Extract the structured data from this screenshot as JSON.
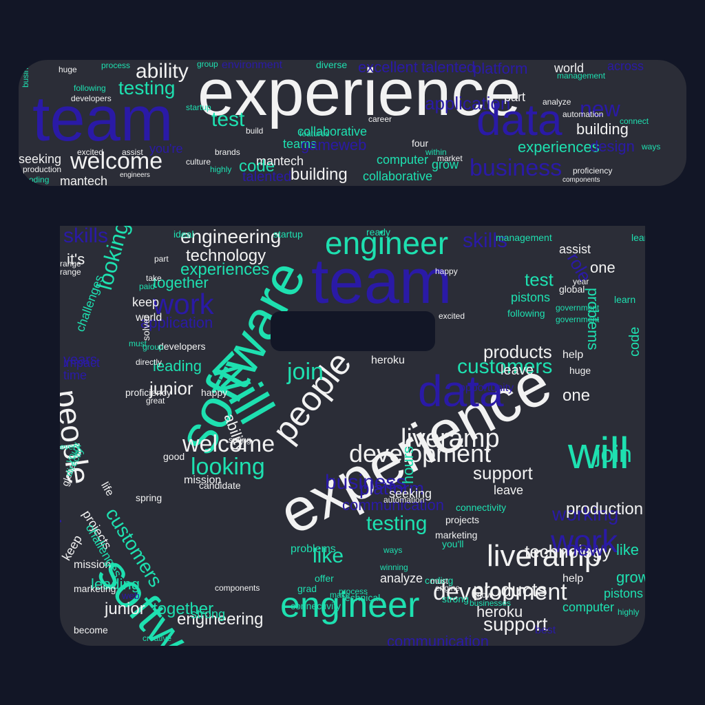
{
  "palette": {
    "background": "#121626",
    "shape": "#2b2d37",
    "white": "#f2f2f2",
    "teal": "#1ee0b0",
    "indigo": "#2a1aa6"
  },
  "lid_words": [
    {
      "t": "experience",
      "c": "white"
    },
    {
      "t": "team",
      "c": "indigo"
    },
    {
      "t": "data",
      "c": "indigo"
    },
    {
      "t": "ability",
      "c": "white"
    },
    {
      "t": "welcome",
      "c": "white"
    },
    {
      "t": "testing",
      "c": "teal"
    },
    {
      "t": "test",
      "c": "teal"
    },
    {
      "t": "business",
      "c": "indigo"
    },
    {
      "t": "new",
      "c": "indigo"
    },
    {
      "t": "building",
      "c": "white"
    },
    {
      "t": "experiences",
      "c": "teal"
    },
    {
      "t": "code",
      "c": "teal"
    },
    {
      "t": "building",
      "c": "white"
    },
    {
      "t": "mantech",
      "c": "white"
    },
    {
      "t": "mantech",
      "c": "white"
    },
    {
      "t": "collaborative",
      "c": "teal"
    },
    {
      "t": "collaborative",
      "c": "teal"
    },
    {
      "t": "application",
      "c": "indigo"
    },
    {
      "t": "platform",
      "c": "indigo"
    },
    {
      "t": "teams",
      "c": "teal"
    },
    {
      "t": "seeking",
      "c": "white"
    },
    {
      "t": "computer",
      "c": "teal"
    },
    {
      "t": "grow",
      "c": "teal"
    },
    {
      "t": "design",
      "c": "indigo"
    },
    {
      "t": "part",
      "c": "white"
    },
    {
      "t": "world",
      "c": "white"
    },
    {
      "t": "automation",
      "c": "white"
    },
    {
      "t": "proficiency",
      "c": "white"
    },
    {
      "t": "components",
      "c": "white"
    },
    {
      "t": "ways",
      "c": "teal"
    },
    {
      "t": "huge",
      "c": "white"
    },
    {
      "t": "excited",
      "c": "white"
    },
    {
      "t": "assist",
      "c": "white"
    },
    {
      "t": "culture",
      "c": "white"
    },
    {
      "t": "brands",
      "c": "white"
    },
    {
      "t": "highly",
      "c": "teal"
    },
    {
      "t": "features",
      "c": "teal"
    },
    {
      "t": "four",
      "c": "white"
    },
    {
      "t": "within",
      "c": "teal"
    },
    {
      "t": "market",
      "c": "white"
    },
    {
      "t": "career",
      "c": "white"
    },
    {
      "t": "excellent",
      "c": "indigo"
    },
    {
      "t": "talented",
      "c": "indigo"
    },
    {
      "t": "diverse",
      "c": "teal"
    },
    {
      "t": "environment",
      "c": "indigo"
    },
    {
      "t": "group",
      "c": "teal"
    },
    {
      "t": "process",
      "c": "teal"
    },
    {
      "t": "following",
      "c": "teal"
    },
    {
      "t": "developers",
      "c": "white"
    },
    {
      "t": "startup",
      "c": "teal"
    },
    {
      "t": "build",
      "c": "white"
    },
    {
      "t": "engineers",
      "c": "white"
    },
    {
      "t": "production",
      "c": "white"
    },
    {
      "t": "coding",
      "c": "teal"
    },
    {
      "t": "management",
      "c": "teal"
    },
    {
      "t": "across",
      "c": "indigo"
    },
    {
      "t": "connect",
      "c": "teal"
    },
    {
      "t": "analyze",
      "c": "white"
    },
    {
      "t": "you're",
      "c": "indigo"
    },
    {
      "t": "gameweb",
      "c": "indigo"
    },
    {
      "t": "talented",
      "c": "indigo"
    },
    {
      "t": "businesses",
      "c": "teal"
    }
  ],
  "box_words": [
    {
      "t": "team",
      "c": "indigo"
    },
    {
      "t": "experience",
      "c": "white"
    },
    {
      "t": "software",
      "c": "teal"
    },
    {
      "t": "software",
      "c": "teal"
    },
    {
      "t": "will",
      "c": "teal"
    },
    {
      "t": "will",
      "c": "teal"
    },
    {
      "t": "people",
      "c": "white"
    },
    {
      "t": "people",
      "c": "white"
    },
    {
      "t": "engineer",
      "c": "teal"
    },
    {
      "t": "engineer",
      "c": "teal"
    },
    {
      "t": "data",
      "c": "indigo"
    },
    {
      "t": "liveramp",
      "c": "white"
    },
    {
      "t": "liveramp",
      "c": "white"
    },
    {
      "t": "development",
      "c": "white"
    },
    {
      "t": "development",
      "c": "white"
    },
    {
      "t": "work",
      "c": "indigo"
    },
    {
      "t": "work",
      "c": "indigo"
    },
    {
      "t": "welcome",
      "c": "white"
    },
    {
      "t": "looking",
      "c": "teal"
    },
    {
      "t": "looking",
      "c": "teal"
    },
    {
      "t": "join",
      "c": "teal"
    },
    {
      "t": "join",
      "c": "teal"
    },
    {
      "t": "customers",
      "c": "teal"
    },
    {
      "t": "customers",
      "c": "teal"
    },
    {
      "t": "skills",
      "c": "indigo"
    },
    {
      "t": "skills",
      "c": "indigo"
    },
    {
      "t": "engineering",
      "c": "white"
    },
    {
      "t": "engineering",
      "c": "white"
    },
    {
      "t": "technology",
      "c": "white"
    },
    {
      "t": "technology",
      "c": "white"
    },
    {
      "t": "experiences",
      "c": "teal"
    },
    {
      "t": "together",
      "c": "teal"
    },
    {
      "t": "together",
      "c": "teal"
    },
    {
      "t": "application",
      "c": "indigo"
    },
    {
      "t": "products",
      "c": "white"
    },
    {
      "t": "products",
      "c": "white"
    },
    {
      "t": "testing",
      "c": "teal"
    },
    {
      "t": "test",
      "c": "teal"
    },
    {
      "t": "support",
      "c": "white"
    },
    {
      "t": "support",
      "c": "white"
    },
    {
      "t": "business",
      "c": "indigo"
    },
    {
      "t": "platform",
      "c": "indigo"
    },
    {
      "t": "communication",
      "c": "indigo"
    },
    {
      "t": "communication",
      "c": "indigo"
    },
    {
      "t": "working",
      "c": "indigo"
    },
    {
      "t": "leading",
      "c": "teal"
    },
    {
      "t": "leading",
      "c": "teal"
    },
    {
      "t": "junior",
      "c": "white"
    },
    {
      "t": "junior",
      "c": "white"
    },
    {
      "t": "one",
      "c": "white"
    },
    {
      "t": "one",
      "c": "white"
    },
    {
      "t": "like",
      "c": "teal"
    },
    {
      "t": "like",
      "c": "teal"
    },
    {
      "t": "role",
      "c": "indigo"
    },
    {
      "t": "role",
      "c": "indigo"
    },
    {
      "t": "code",
      "c": "teal"
    },
    {
      "t": "grow",
      "c": "teal"
    },
    {
      "t": "pistons",
      "c": "teal"
    },
    {
      "t": "pistons",
      "c": "teal"
    },
    {
      "t": "heroku",
      "c": "white"
    },
    {
      "t": "heroku",
      "c": "white"
    },
    {
      "t": "ability",
      "c": "white"
    },
    {
      "t": "mission",
      "c": "white"
    },
    {
      "t": "mission",
      "c": "white"
    },
    {
      "t": "projects",
      "c": "white"
    },
    {
      "t": "projects",
      "c": "white"
    },
    {
      "t": "strong",
      "c": "teal"
    },
    {
      "t": "strong",
      "c": "teal"
    },
    {
      "t": "problems",
      "c": "teal"
    },
    {
      "t": "problems",
      "c": "teal"
    },
    {
      "t": "challenges",
      "c": "teal"
    },
    {
      "t": "challenges",
      "c": "teal"
    },
    {
      "t": "computer",
      "c": "teal"
    },
    {
      "t": "hours",
      "c": "teal"
    },
    {
      "t": "connectivity",
      "c": "teal"
    },
    {
      "t": "connectivity",
      "c": "teal"
    },
    {
      "t": "keep",
      "c": "white"
    },
    {
      "t": "keep",
      "c": "white"
    },
    {
      "t": "world",
      "c": "white"
    },
    {
      "t": "global",
      "c": "white"
    },
    {
      "t": "global",
      "c": "white"
    },
    {
      "t": "help",
      "c": "white"
    },
    {
      "t": "help",
      "c": "white"
    },
    {
      "t": "huge",
      "c": "white"
    },
    {
      "t": "leave",
      "c": "white"
    },
    {
      "t": "leave",
      "c": "white"
    },
    {
      "t": "seeking",
      "c": "white"
    },
    {
      "t": "analyze",
      "c": "white"
    },
    {
      "t": "automation",
      "c": "white"
    },
    {
      "t": "marketing",
      "c": "white"
    },
    {
      "t": "marketing",
      "c": "white"
    },
    {
      "t": "ideal",
      "c": "teal"
    },
    {
      "t": "startup",
      "c": "teal"
    },
    {
      "t": "ready",
      "c": "teal"
    },
    {
      "t": "management",
      "c": "teal"
    },
    {
      "t": "learn",
      "c": "teal"
    },
    {
      "t": "learn",
      "c": "teal"
    },
    {
      "t": "part",
      "c": "white"
    },
    {
      "t": "range",
      "c": "white"
    },
    {
      "t": "range",
      "c": "white"
    },
    {
      "t": "take",
      "c": "white"
    },
    {
      "t": "paid",
      "c": "teal"
    },
    {
      "t": "businesses",
      "c": "teal"
    },
    {
      "t": "happy",
      "c": "white"
    },
    {
      "t": "happy",
      "c": "white"
    },
    {
      "t": "components",
      "c": "white"
    },
    {
      "t": "developers",
      "c": "white"
    },
    {
      "t": "spring",
      "c": "white"
    },
    {
      "t": "spring",
      "c": "white"
    },
    {
      "t": "good",
      "c": "white"
    },
    {
      "t": "candidate",
      "c": "white"
    },
    {
      "t": "proficiency",
      "c": "white"
    },
    {
      "t": "great",
      "c": "white"
    },
    {
      "t": "every",
      "c": "teal"
    },
    {
      "t": "life",
      "c": "white"
    },
    {
      "t": "you'll",
      "c": "teal"
    },
    {
      "t": "you'll",
      "c": "teal"
    },
    {
      "t": "coding",
      "c": "teal"
    },
    {
      "t": "offer",
      "c": "teal"
    },
    {
      "t": "grad",
      "c": "teal"
    },
    {
      "t": "make",
      "c": "teal"
    },
    {
      "t": "know",
      "c": "white"
    },
    {
      "t": "engine",
      "c": "white"
    },
    {
      "t": "must",
      "c": "white"
    },
    {
      "t": "must",
      "c": "teal"
    },
    {
      "t": "solver",
      "c": "white"
    },
    {
      "t": "directly",
      "c": "teal"
    },
    {
      "t": "directly",
      "c": "white"
    },
    {
      "t": "group",
      "c": "teal"
    },
    {
      "t": "production",
      "c": "white"
    },
    {
      "t": "new",
      "c": "indigo"
    },
    {
      "t": "web",
      "c": "indigo"
    },
    {
      "t": "creative",
      "c": "teal"
    },
    {
      "t": "become",
      "c": "white"
    },
    {
      "t": "highly",
      "c": "teal"
    },
    {
      "t": "government",
      "c": "teal"
    },
    {
      "t": "government",
      "c": "teal"
    },
    {
      "t": "following",
      "c": "teal"
    },
    {
      "t": "excited",
      "c": "white"
    },
    {
      "t": "assist",
      "c": "white"
    },
    {
      "t": "year",
      "c": "white"
    },
    {
      "t": "ways",
      "c": "teal"
    },
    {
      "t": "winning",
      "c": "teal"
    },
    {
      "t": "process",
      "c": "teal"
    },
    {
      "t": "technical",
      "c": "teal"
    },
    {
      "t": "it's",
      "c": "white"
    },
    {
      "t": "years",
      "c": "indigo"
    },
    {
      "t": "time",
      "c": "indigo"
    },
    {
      "t": "impact",
      "c": "indigo"
    },
    {
      "t": "opportunity",
      "c": "indigo"
    },
    {
      "t": "best",
      "c": "indigo"
    },
    {
      "t": "opportunity",
      "c": "indigo"
    }
  ]
}
